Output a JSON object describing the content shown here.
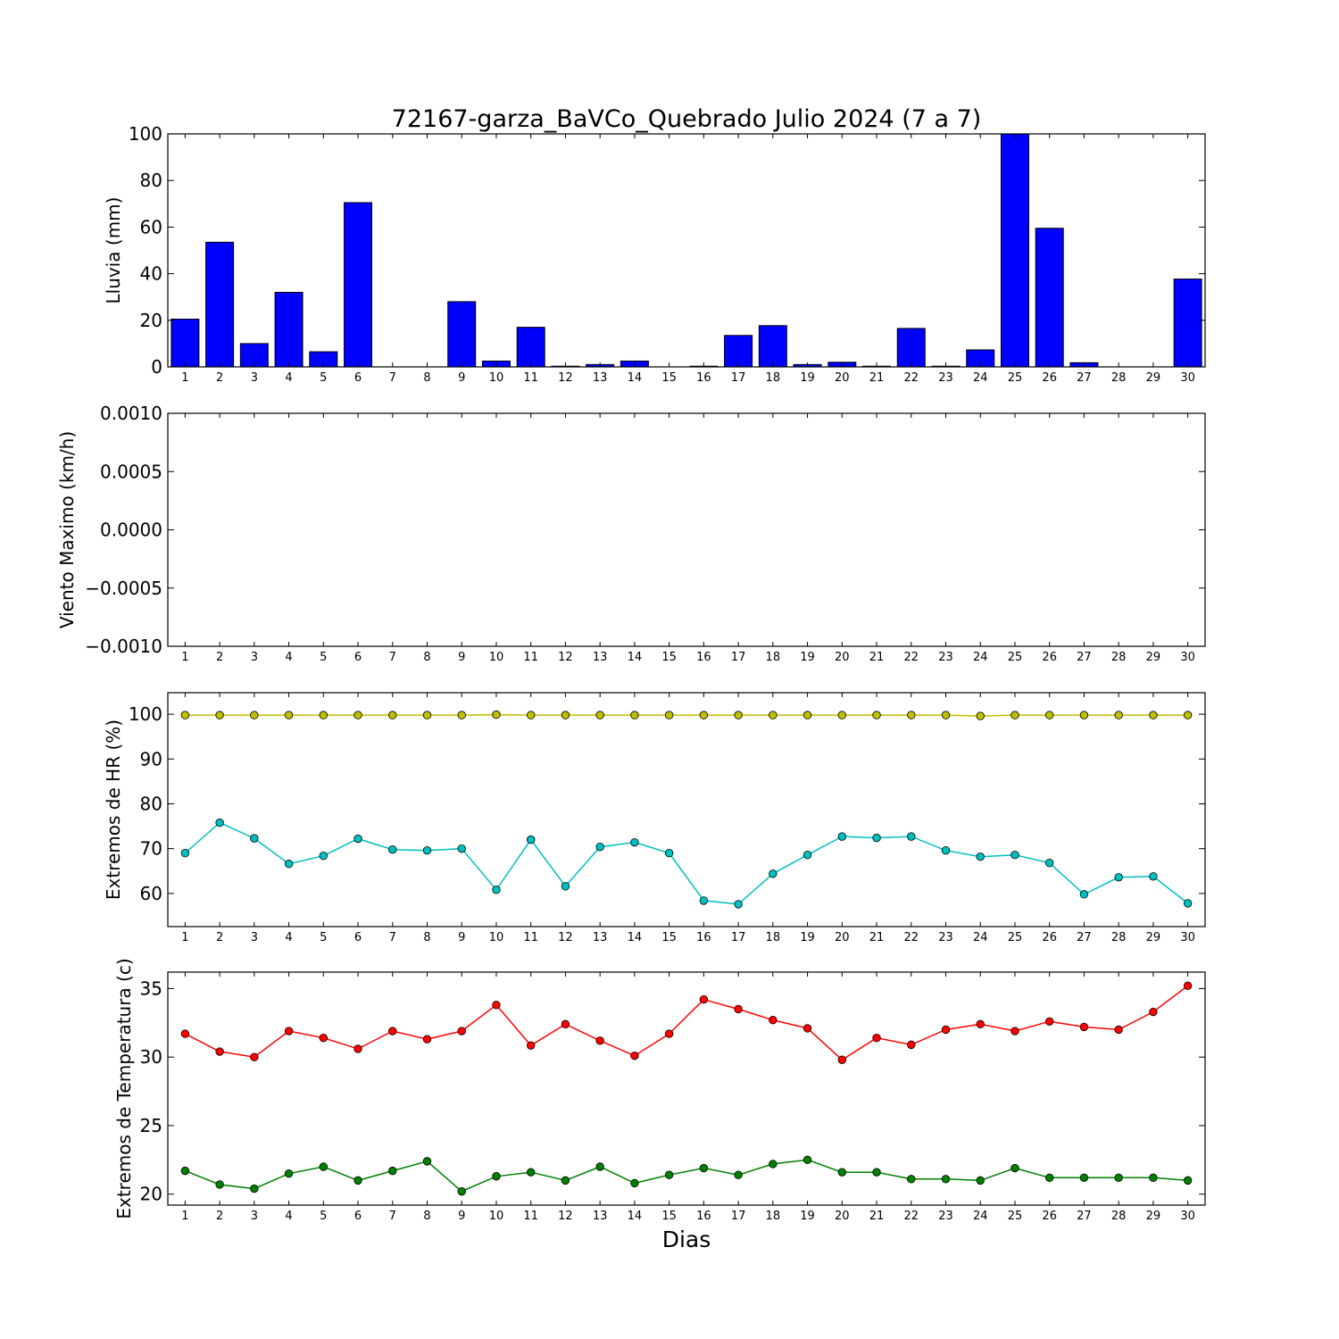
{
  "figure": {
    "title": "72167-garza_BaVCo_Quebrado Julio 2024  (7 a 7)",
    "xlabel": "Dias"
  },
  "colors": {
    "rain": "#0000ff",
    "hr_max": "#bfbf00",
    "hr_min": "#00bfbf",
    "temp_max": "#ff0000",
    "temp_min": "#008000"
  },
  "chart_data": [
    {
      "type": "bar",
      "ylabel": "Lluvia (mm)",
      "ylim": [
        0,
        100
      ],
      "yticks": [
        "0",
        "20",
        "40",
        "60",
        "80",
        "100"
      ],
      "categories": [
        "1",
        "2",
        "3",
        "4",
        "5",
        "6",
        "7",
        "8",
        "9",
        "10",
        "11",
        "12",
        "13",
        "14",
        "15",
        "16",
        "17",
        "18",
        "19",
        "20",
        "21",
        "22",
        "23",
        "24",
        "25",
        "26",
        "27",
        "28",
        "29",
        "30"
      ],
      "values": [
        20.5,
        53.5,
        10,
        32,
        6.5,
        70.5,
        0,
        0,
        28,
        2.5,
        17,
        0.3,
        1,
        2.5,
        0,
        0.3,
        13.5,
        17.7,
        1,
        2,
        0.3,
        16.5,
        0.3,
        7.3,
        100,
        59.5,
        1.8,
        0,
        0,
        37.7
      ]
    },
    {
      "type": "line",
      "ylabel": "Viento Maximo (km/h)",
      "ylim": [
        -0.001,
        0.001
      ],
      "yticks": [
        "0.0010",
        "0.0005",
        "0.0000",
        "−0.0005",
        "−0.0010"
      ],
      "categories": [
        "1",
        "2",
        "3",
        "4",
        "5",
        "6",
        "7",
        "8",
        "9",
        "10",
        "11",
        "12",
        "13",
        "14",
        "15",
        "16",
        "17",
        "18",
        "19",
        "20",
        "21",
        "22",
        "23",
        "24",
        "25",
        "26",
        "27",
        "28",
        "29",
        "30"
      ],
      "series": []
    },
    {
      "type": "line",
      "ylabel": "Extremos de HR (%)",
      "ylim": [
        52.6,
        104.8
      ],
      "yticks": [
        "60",
        "70",
        "80",
        "90",
        "100"
      ],
      "categories": [
        "1",
        "2",
        "3",
        "4",
        "5",
        "6",
        "7",
        "8",
        "9",
        "10",
        "11",
        "12",
        "13",
        "14",
        "15",
        "16",
        "17",
        "18",
        "19",
        "20",
        "21",
        "22",
        "23",
        "24",
        "25",
        "26",
        "27",
        "28",
        "29",
        "30"
      ],
      "series": [
        {
          "values": [
            99.8,
            99.8,
            99.8,
            99.8,
            99.8,
            99.8,
            99.8,
            99.8,
            99.8,
            99.9,
            99.8,
            99.8,
            99.8,
            99.8,
            99.8,
            99.8,
            99.8,
            99.8,
            99.8,
            99.8,
            99.8,
            99.8,
            99.8,
            99.6,
            99.8,
            99.8,
            99.8,
            99.8,
            99.8,
            99.8
          ]
        },
        {
          "values": [
            69,
            75.8,
            72.3,
            66.6,
            68.4,
            72.2,
            69.8,
            69.6,
            70,
            60.8,
            72,
            61.6,
            70.4,
            71.4,
            69,
            58.4,
            57.6,
            64.4,
            68.6,
            72.7,
            72.4,
            72.7,
            69.6,
            68.2,
            68.6,
            66.8,
            59.8,
            63.6,
            63.8,
            57.8
          ]
        }
      ]
    },
    {
      "type": "line",
      "ylabel": "Extremos de Temperatura (c)",
      "ylim": [
        19.2,
        36.2
      ],
      "yticks": [
        "20",
        "25",
        "30",
        "35"
      ],
      "categories": [
        "1",
        "2",
        "3",
        "4",
        "5",
        "6",
        "7",
        "8",
        "9",
        "10",
        "11",
        "12",
        "13",
        "14",
        "15",
        "16",
        "17",
        "18",
        "19",
        "20",
        "21",
        "22",
        "23",
        "24",
        "25",
        "26",
        "27",
        "28",
        "29",
        "30"
      ],
      "series": [
        {
          "values": [
            31.7,
            30.4,
            30.0,
            31.9,
            31.4,
            30.6,
            31.9,
            31.3,
            31.9,
            33.8,
            30.85,
            32.4,
            31.2,
            30.1,
            31.7,
            34.2,
            33.5,
            32.7,
            32.1,
            29.8,
            31.4,
            30.9,
            32.0,
            32.4,
            31.9,
            32.6,
            32.2,
            32.0,
            33.3,
            35.2
          ]
        },
        {
          "values": [
            21.7,
            20.7,
            20.4,
            21.5,
            22.0,
            21.0,
            21.7,
            22.4,
            20.2,
            21.3,
            21.6,
            21.0,
            22.0,
            20.8,
            21.4,
            21.9,
            21.4,
            22.2,
            22.5,
            21.6,
            21.6,
            21.1,
            21.1,
            21.0,
            21.9,
            21.2,
            21.2,
            21.2,
            21.2,
            21.0
          ]
        }
      ]
    }
  ]
}
